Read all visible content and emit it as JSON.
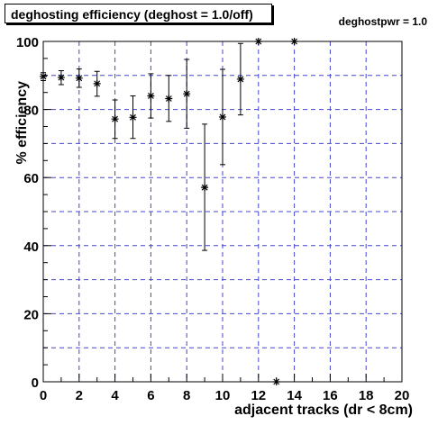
{
  "chart_data": {
    "type": "scatter",
    "title": "deghosting efficiency (deghost = 1.0/off)",
    "annotation": "deghostpwr = 1.0",
    "xlabel": "adjacent tracks (dr < 8cm)",
    "ylabel": "% efficiency",
    "xlim": [
      0,
      20
    ],
    "ylim": [
      0,
      100
    ],
    "x_ticks": [
      "0",
      "2",
      "4",
      "6",
      "8",
      "10",
      "12",
      "14",
      "16",
      "18",
      "20"
    ],
    "y_ticks": [
      "0",
      "20",
      "40",
      "60",
      "80",
      "100"
    ],
    "grid": true,
    "marker": "asterisk",
    "points": [
      {
        "x": 0,
        "y": 89.7,
        "yerr_low": 88.5,
        "yerr_high": 90.8
      },
      {
        "x": 1,
        "y": 89.4,
        "yerr_low": 87.3,
        "yerr_high": 91.4
      },
      {
        "x": 2,
        "y": 89.2,
        "yerr_low": 86.5,
        "yerr_high": 91.9
      },
      {
        "x": 3,
        "y": 87.6,
        "yerr_low": 83.9,
        "yerr_high": 91.2
      },
      {
        "x": 4,
        "y": 77.2,
        "yerr_low": 71.5,
        "yerr_high": 82.8
      },
      {
        "x": 5,
        "y": 77.7,
        "yerr_low": 71.5,
        "yerr_high": 84.0
      },
      {
        "x": 6,
        "y": 84.0,
        "yerr_low": 77.5,
        "yerr_high": 90.5
      },
      {
        "x": 7,
        "y": 83.2,
        "yerr_low": 76.5,
        "yerr_high": 90.0
      },
      {
        "x": 8,
        "y": 84.6,
        "yerr_low": 74.5,
        "yerr_high": 94.7
      },
      {
        "x": 9,
        "y": 57.1,
        "yerr_low": 38.6,
        "yerr_high": 75.7
      },
      {
        "x": 10,
        "y": 77.8,
        "yerr_low": 63.8,
        "yerr_high": 91.8
      },
      {
        "x": 11,
        "y": 88.9,
        "yerr_low": 78.4,
        "yerr_high": 99.4
      },
      {
        "x": 12,
        "y": 100
      },
      {
        "x": 13,
        "y": 0
      },
      {
        "x": 14,
        "y": 100
      }
    ],
    "colors": {
      "grid": "#4444cc",
      "marker": "#000000",
      "axis": "#000000"
    }
  }
}
